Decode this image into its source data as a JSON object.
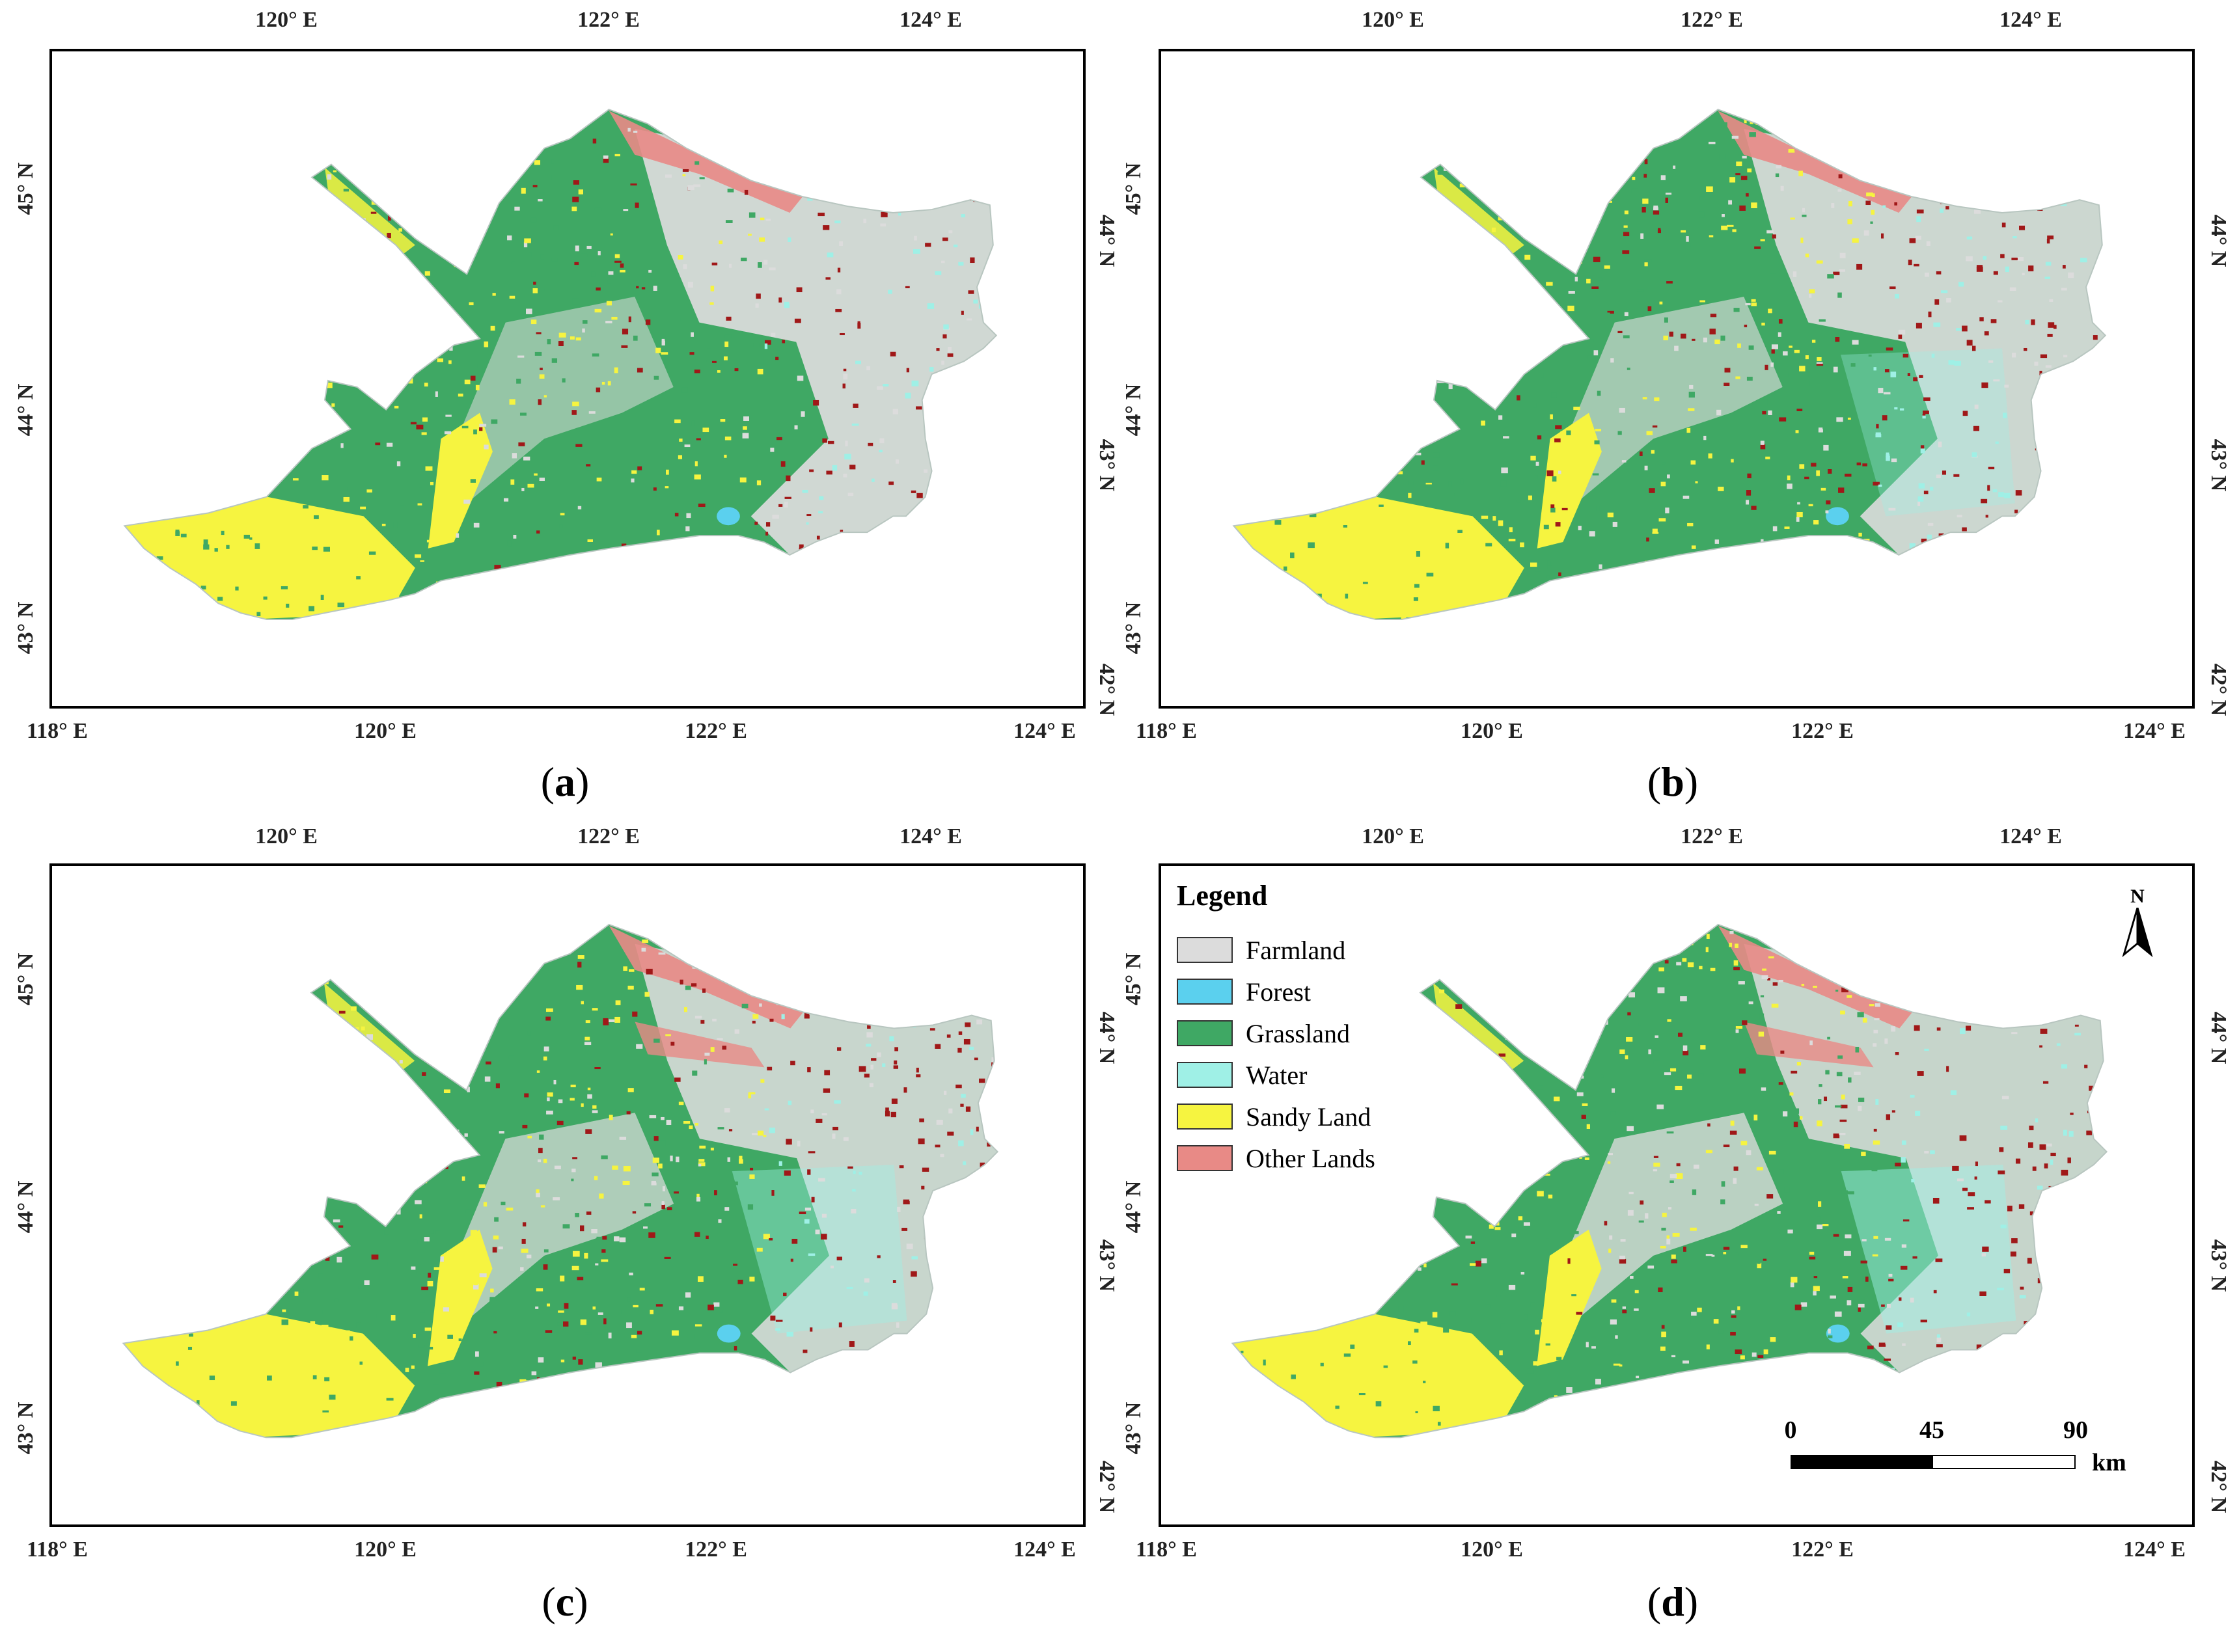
{
  "colors": {
    "farmland": "#dcdcdc",
    "forest": "#5bd0ee",
    "grassland": "#3fa864",
    "water": "#9ff0e6",
    "sandy": "#f6f440",
    "other": "#e88a86",
    "speckle": "#a01818"
  },
  "axes": {
    "top_ticks": [
      "120° E",
      "122° E",
      "124° E"
    ],
    "bottom_ticks": [
      "118° E",
      "120° E",
      "122° E",
      "124° E"
    ],
    "left_ticks": [
      "45° N",
      "44° N",
      "43° N"
    ],
    "right_ticks": [
      "44° N",
      "43° N",
      "42° N"
    ]
  },
  "panels": [
    {
      "id": "a",
      "caption": "a"
    },
    {
      "id": "b",
      "caption": "b"
    },
    {
      "id": "c",
      "caption": "c"
    },
    {
      "id": "d",
      "caption": "d"
    }
  ],
  "legend": {
    "title": "Legend",
    "items": [
      {
        "label": "Farmland",
        "color": "#dcdcdc"
      },
      {
        "label": "Forest",
        "color": "#5bd0ee"
      },
      {
        "label": "Grassland",
        "color": "#3fa864"
      },
      {
        "label": "Water",
        "color": "#9ff0e6"
      },
      {
        "label": "Sandy Land",
        "color": "#f6f440"
      },
      {
        "label": "Other Lands",
        "color": "#e88a86"
      }
    ]
  },
  "north_arrow": {
    "label": "N"
  },
  "scale_bar": {
    "labels": [
      "0",
      "45",
      "90"
    ],
    "unit": "km"
  }
}
